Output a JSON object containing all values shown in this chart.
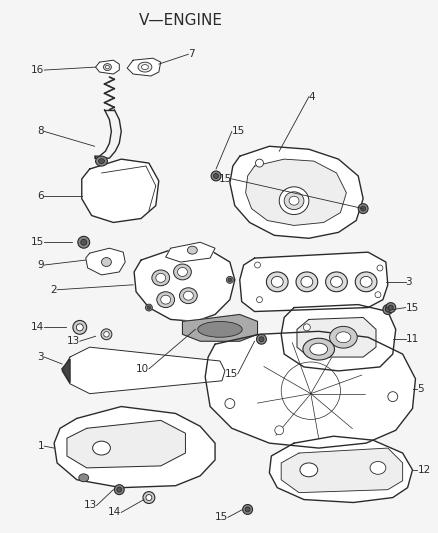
{
  "title": "V—ENGINE",
  "background_color": "#f5f5f5",
  "line_color": "#2a2a2a",
  "label_color": "#2a2a2a",
  "label_fontsize": 7.5
}
